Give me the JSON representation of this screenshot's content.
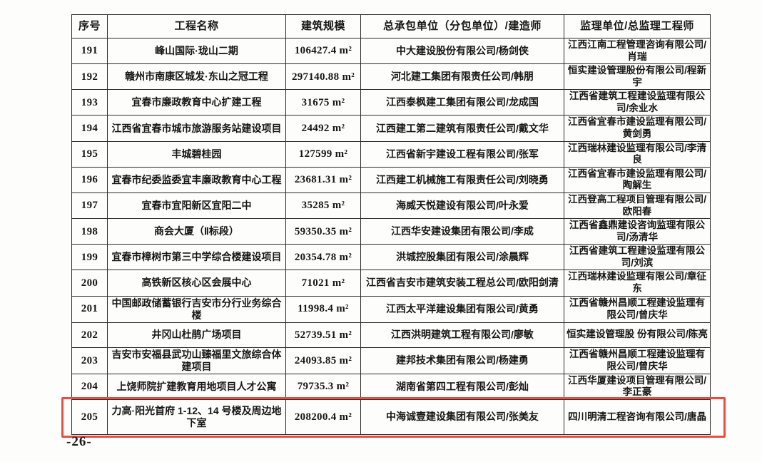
{
  "document": {
    "page_label": "-26-"
  },
  "highlight": {
    "color": "#ee4b40"
  },
  "table": {
    "headers": [
      {
        "key": "no",
        "label": "序号"
      },
      {
        "key": "name",
        "label": "工程名称"
      },
      {
        "key": "scale",
        "label": "建筑规模"
      },
      {
        "key": "contractor",
        "label": "总承包单位（分包单位）/建造师"
      },
      {
        "key": "supervisor",
        "label": "监理单位/总监理工程师"
      }
    ],
    "rows": [
      {
        "no": "191",
        "name": "峰山国际·珑山二期",
        "scale": "106427.4 m²",
        "contractor": "中大建设股份有限公司/杨剑侠",
        "supervisor": "江西江南工程管理咨询有限公司/肖瑞",
        "highlighted": false
      },
      {
        "no": "192",
        "name": "赣州市南康区城发·东山之冠工程",
        "scale": "297140.88 m²",
        "contractor": "河北建工集团有限责任公司/韩朋",
        "supervisor": "恒实建设管理股份有限公司/程新宇",
        "highlighted": false
      },
      {
        "no": "193",
        "name": "宜春市廉政教育中心扩建工程",
        "scale": "31675 m²",
        "contractor": "江西泰枫建工集团有限公司/龙成国",
        "supervisor": "江西省建筑工程建设监理有限公司/余业水",
        "highlighted": false
      },
      {
        "no": "194",
        "name": "江西省宜春市城市旅游服务站建设项目",
        "scale": "24492 m²",
        "contractor": "江西建工第二建筑有限责任公司/戴文华",
        "supervisor": "江西省宜春市建设监理有限公司/黄剑勇",
        "highlighted": false
      },
      {
        "no": "195",
        "name": "丰城碧桂园",
        "scale": "127599 m²",
        "contractor": "江西省新宇建设工程有限公司/张军",
        "supervisor": "江西瑞林建设监理有限公司/李清良",
        "highlighted": false
      },
      {
        "no": "196",
        "name": "宜春市纪委监委宜丰廉政教育中心工程",
        "scale": "23681.31 m²",
        "contractor": "江西建工机械施工有限责任公司/刘晓勇",
        "supervisor": "江西省宜春市建设监理有限公司/陶解生",
        "highlighted": false
      },
      {
        "no": "197",
        "name": "宜春市宜阳新区宜阳二中",
        "scale": "35285 m²",
        "contractor": "海威天悦建设有限公司/叶永爱",
        "supervisor": "江西登高工程项目管理有限公司/欧阳春",
        "highlighted": false
      },
      {
        "no": "198",
        "name": "商会大厦（Ⅱ标段）",
        "scale": "59350.35 m²",
        "contractor": "江西华安建设集团有限公司/李成",
        "supervisor": "江西省鑫鼎建设咨询监理有限公司/汤清华",
        "highlighted": false
      },
      {
        "no": "199",
        "name": "宜春市樟树市第三中学综合楼建设项目",
        "scale": "20354.78 m²",
        "contractor": "洪城控股集团有限公司/涂晨辉",
        "supervisor": "江西省建筑工程建设监理有限公司/刘滨",
        "highlighted": false
      },
      {
        "no": "200",
        "name": "高铁新区核心区会展中心",
        "scale": "71021 m²",
        "contractor": "江西省吉安市建筑安装工程总公司/欧阳剑清",
        "supervisor": "江西瑞林建设监理有限公司/章征东",
        "highlighted": false
      },
      {
        "no": "201",
        "name": "中国邮政储蓄银行吉安市分行业务综合楼",
        "scale": "11998.4 m²",
        "contractor": "江西太平洋建设集团有限公司/黄勇",
        "supervisor": "江西省赣州昌顺工程建设监理有限公司/曾庆华",
        "highlighted": false
      },
      {
        "no": "202",
        "name": "井冈山杜鹃广场项目",
        "scale": "52739.51 m²",
        "contractor": "江西洪明建筑工程有限公司/廖敏",
        "supervisor": "恒实建设管理股 份有限公司/陈亮",
        "highlighted": false
      },
      {
        "no": "203",
        "name": "吉安市安福县武功山臻福里文旅综合体建项目",
        "scale": "24093.85 m²",
        "contractor": "建邦技术集团有限公司/杨建勇",
        "supervisor": "江西省赣州昌顺工程建设监理有限公司/曾庆华",
        "highlighted": false
      },
      {
        "no": "204",
        "name": "上饶师院扩建教育用地项目人才公寓",
        "scale": "79735.3 m²",
        "contractor": "湖南省第四工程有限公司/彭灿",
        "supervisor": "江西华厦建设项目管理有限公司/李正豪",
        "highlighted": false
      },
      {
        "no": "205",
        "name": "力高·阳光首府 1-12、14 号楼及周边地下室",
        "scale": "208200.4 m²",
        "contractor": "中海诚壹建设集团有限公司/张美友",
        "supervisor": "四川明清工程咨询有限公司/唐晶",
        "highlighted": true
      }
    ]
  }
}
